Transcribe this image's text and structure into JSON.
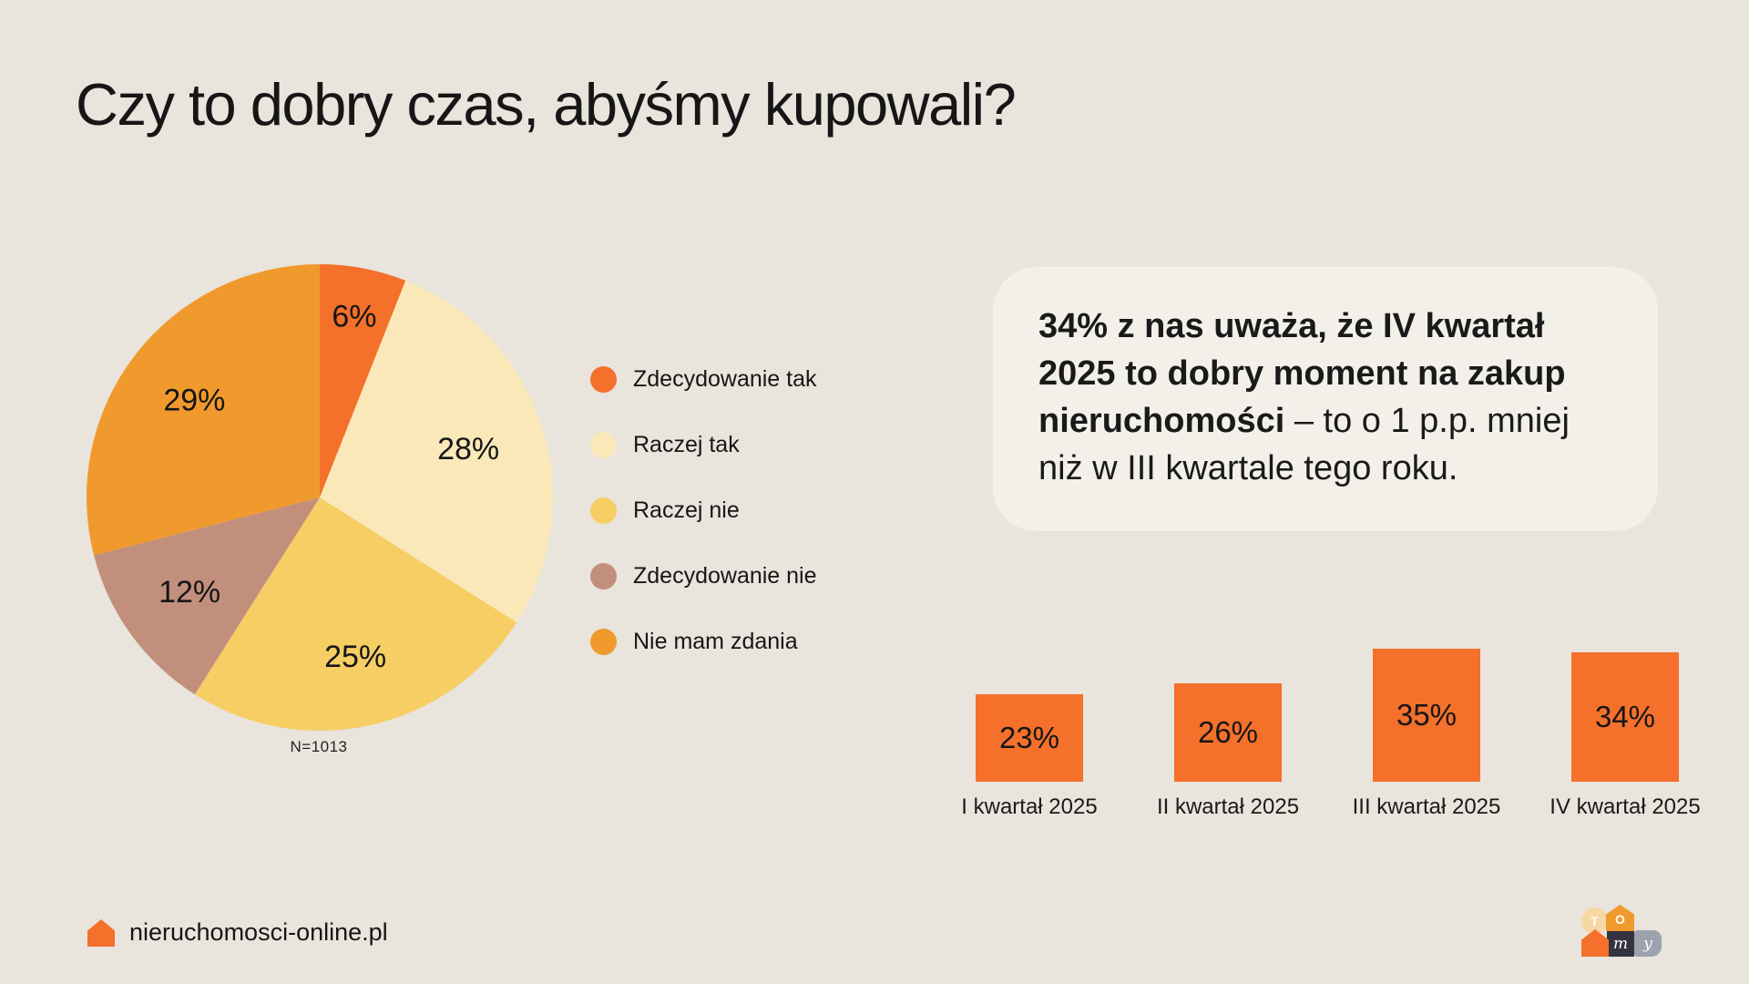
{
  "page": {
    "background": "#E9E4DC",
    "title": "Czy to dobry czas, abyśmy kupowali?"
  },
  "pie_section": {
    "sample_note": "N=1013"
  },
  "callout": {
    "bold_text": "34% z nas uważa, że IV kwartał 2025 to dobry moment na zakup nieruchomości",
    "regular_text": " – to o 1 p.p. mniej niż w III kwartale tego roku."
  },
  "footer": {
    "site": "nieruchomosci-online.pl"
  },
  "logo": {
    "letters": [
      "T",
      "O",
      "m",
      "y"
    ],
    "colors": {
      "circle": "#F7D8A3",
      "house_o": "#F09A2D",
      "house_small": "#F4702B",
      "m_square": "#343440",
      "y_square": "#9DA2AE"
    }
  },
  "colors": {
    "bright_orange": "#F4702B",
    "mid_orange": "#F09A2D",
    "cream": "#FAE8B8",
    "yellow": "#F6CE64",
    "tan": "#C28F7D",
    "callout_bg": "#F3F0EA",
    "text": "#161616"
  },
  "chart_data": [
    {
      "type": "pie",
      "title": "",
      "labels": [
        "Zdecydowanie tak",
        "Raczej tak",
        "Raczej nie",
        "Zdecydowanie nie",
        "Nie mam zdania"
      ],
      "values": [
        6,
        28,
        25,
        12,
        29
      ],
      "value_labels": [
        "6%",
        "28%",
        "25%",
        "12%",
        "29%"
      ],
      "colors": [
        "#F4702B",
        "#FAE8B8",
        "#F6CE64",
        "#C28F7D",
        "#F09A2D"
      ],
      "start_angle_deg": 0,
      "direction": "clockwise",
      "legend_position": "right",
      "sample_note": "N=1013"
    },
    {
      "type": "bar",
      "categories": [
        "I kwartał 2025",
        "II kwartał 2025",
        "III kwartał 2025",
        "IV kwartał 2025"
      ],
      "values": [
        23,
        26,
        35,
        34
      ],
      "value_labels": [
        "23%",
        "26%",
        "35%",
        "34%"
      ],
      "bar_color": "#F4702B",
      "ylim": [
        0,
        35
      ],
      "grid": false,
      "value_label_position": "inside-center"
    }
  ]
}
